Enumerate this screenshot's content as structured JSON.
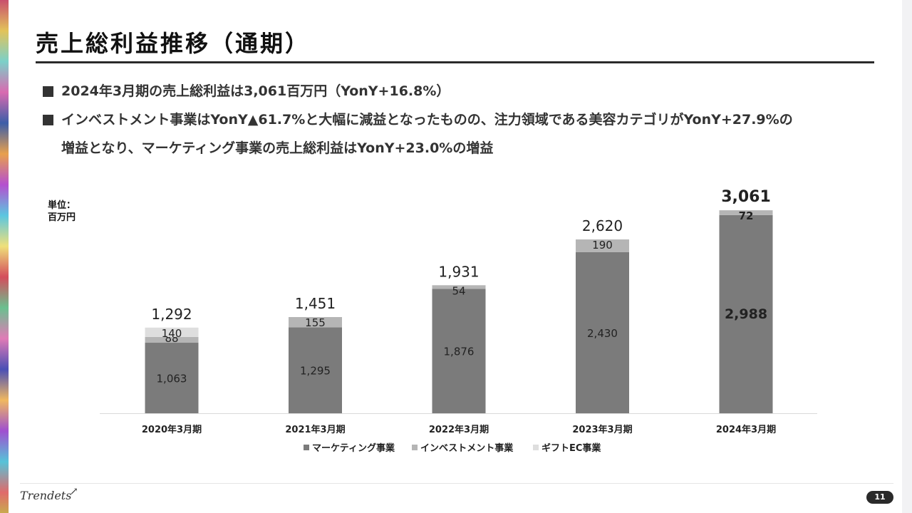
{
  "title": "売上総利益推移（通期）",
  "bullets": [
    {
      "text": "2024年3月期の売上総利益は3,061百万円（YonY+16.8%）"
    },
    {
      "text": "インベストメント事業はYonY▲61.7%と大幅に減益となったものの、注力領域である美容カテゴリがYonY+27.9%の"
    },
    {
      "text": "増益となり、マーケティング事業の売上総利益はYonY+23.0%の増益"
    }
  ],
  "unit_line1": "単位：",
  "unit_line2": "百万円",
  "chart_data": {
    "type": "bar",
    "stacked": true,
    "categories": [
      "2020年3月期",
      "2021年3月期",
      "2022年3月期",
      "2023年3月期",
      "2024年3月期"
    ],
    "series": [
      {
        "name": "マーケティング事業",
        "values": [
          1063,
          1295,
          1876,
          2430,
          2988
        ],
        "labels": [
          "1,063",
          "1,295",
          "1,876",
          "2,430",
          "2,988"
        ],
        "color": "#7b7b7b"
      },
      {
        "name": "インベストメント事業",
        "values": [
          88,
          155,
          54,
          190,
          72
        ],
        "labels": [
          "88",
          "155",
          "54",
          "190",
          "72"
        ],
        "color": "#b5b5b5"
      },
      {
        "name": "ギフトEC事業",
        "values": [
          140,
          null,
          null,
          null,
          null
        ],
        "labels": [
          "140",
          "",
          "",
          "",
          ""
        ],
        "color": "#dedede"
      }
    ],
    "totals": [
      1292,
      1451,
      1931,
      2620,
      3061
    ],
    "total_labels": [
      "1,292",
      "1,451",
      "1,931",
      "2,620",
      "3,061"
    ],
    "highlight_last": true,
    "ylim": [
      0,
      3200
    ],
    "grid": false,
    "legend": "bottom-center"
  },
  "footer": {
    "logo_text": "Trendets",
    "page_number": "11"
  }
}
